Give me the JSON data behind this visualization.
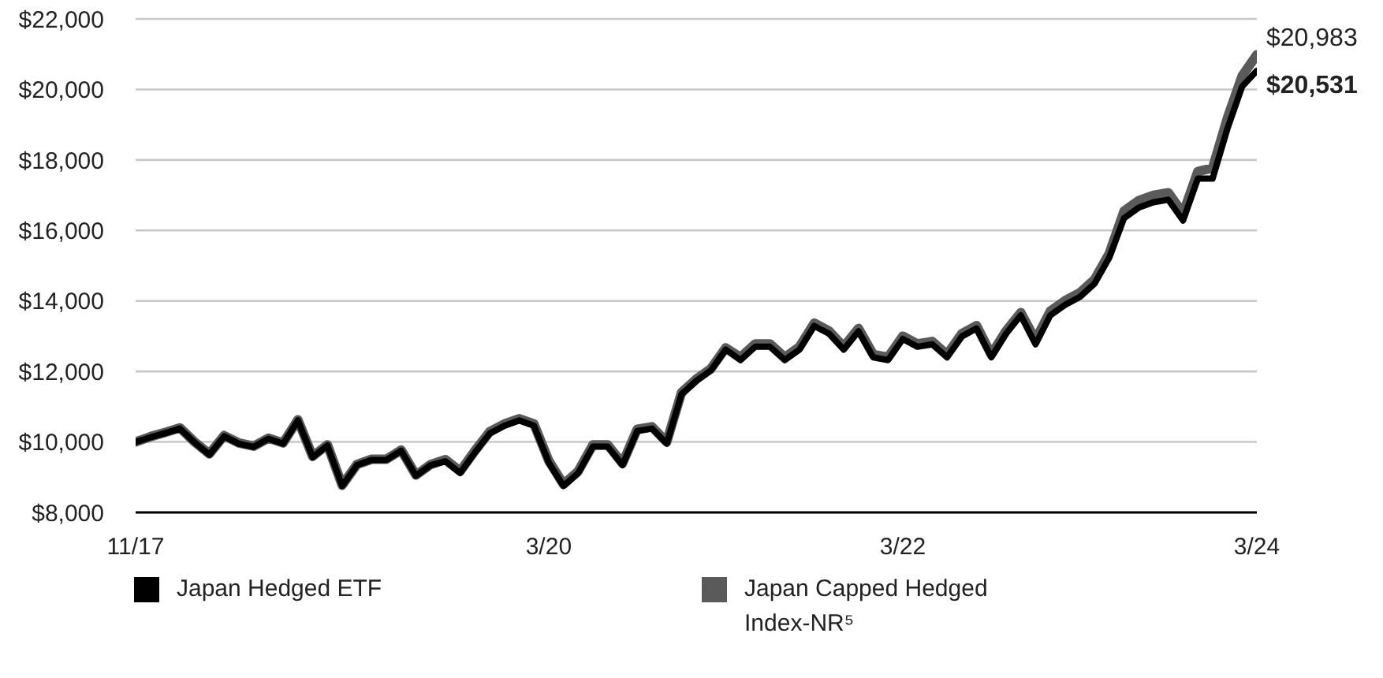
{
  "chart_data": {
    "type": "line",
    "x": [
      "2017-11",
      "2017-12",
      "2018-01",
      "2018-02",
      "2018-03",
      "2018-04",
      "2018-05",
      "2018-06",
      "2018-07",
      "2018-08",
      "2018-09",
      "2018-10",
      "2018-11",
      "2018-12",
      "2019-01",
      "2019-02",
      "2019-03",
      "2019-04",
      "2019-05",
      "2019-06",
      "2019-07",
      "2019-08",
      "2019-09",
      "2019-10",
      "2019-11",
      "2019-12",
      "2020-01",
      "2020-02",
      "2020-03",
      "2020-04",
      "2020-05",
      "2020-06",
      "2020-07",
      "2020-08",
      "2020-09",
      "2020-10",
      "2020-11",
      "2020-12",
      "2021-01",
      "2021-02",
      "2021-03",
      "2021-04",
      "2021-05",
      "2021-06",
      "2021-07",
      "2021-08",
      "2021-09",
      "2021-10",
      "2021-11",
      "2021-12",
      "2022-01",
      "2022-02",
      "2022-03",
      "2022-04",
      "2022-05",
      "2022-06",
      "2022-07",
      "2022-08",
      "2022-09",
      "2022-10",
      "2022-11",
      "2022-12",
      "2023-01",
      "2023-02",
      "2023-03",
      "2023-04",
      "2023-05",
      "2023-06",
      "2023-07",
      "2023-08",
      "2023-09",
      "2023-10",
      "2023-11",
      "2023-12",
      "2024-01",
      "2024-02",
      "2024-03"
    ],
    "series": [
      {
        "name": "Japan Hedged ETF",
        "color": "#000000",
        "values": [
          10000,
          10130,
          10250,
          10380,
          9980,
          9640,
          10160,
          9950,
          9860,
          10090,
          9950,
          10610,
          9570,
          9900,
          8750,
          9340,
          9490,
          9490,
          9750,
          9040,
          9340,
          9450,
          9120,
          9700,
          10240,
          10460,
          10610,
          10460,
          9420,
          8750,
          9120,
          9870,
          9870,
          9340,
          10310,
          10380,
          9950,
          11350,
          11730,
          12030,
          12620,
          12320,
          12700,
          12700,
          12320,
          12620,
          13290,
          13070,
          12620,
          13140,
          12400,
          12320,
          12920,
          12700,
          12770,
          12400,
          12990,
          13220,
          12400,
          13070,
          13590,
          12770,
          13590,
          13890,
          14110,
          14490,
          15230,
          16350,
          16650,
          16800,
          16870,
          16280,
          17470,
          17470,
          18880,
          20080,
          20531
        ],
        "value_labels": [
          null,
          null,
          null,
          null,
          null,
          null,
          null,
          null,
          null,
          null,
          null,
          null,
          null,
          null,
          null,
          null,
          null,
          null,
          null,
          null,
          null,
          null,
          null,
          null,
          null,
          null,
          null,
          null,
          null,
          null,
          null,
          null,
          null,
          null,
          null,
          null,
          null,
          null,
          null,
          null,
          null,
          null,
          null,
          null,
          null,
          null,
          null,
          null,
          null,
          null,
          null,
          null,
          null,
          null,
          null,
          null,
          null,
          null,
          null,
          null,
          null,
          null,
          null,
          null,
          null,
          null,
          null,
          null,
          null,
          null,
          null,
          null,
          null,
          null,
          null,
          null,
          "$20,531"
        ]
      },
      {
        "name": "Japan Capped Hedged Index-NR⁵",
        "color": "#5a5a5a",
        "values": [
          10000,
          10150,
          10270,
          10400,
          10000,
          9660,
          10180,
          9970,
          9880,
          10110,
          9970,
          10630,
          9590,
          9920,
          8770,
          9360,
          9510,
          9510,
          9770,
          9060,
          9360,
          9500,
          9170,
          9750,
          10290,
          10510,
          10660,
          10510,
          9470,
          8800,
          9170,
          9920,
          9920,
          9390,
          10360,
          10430,
          10000,
          11400,
          11780,
          12080,
          12670,
          12400,
          12780,
          12780,
          12400,
          12700,
          13370,
          13150,
          12700,
          13220,
          12480,
          12400,
          13000,
          12780,
          12850,
          12480,
          13070,
          13300,
          12480,
          13150,
          13670,
          12890,
          13710,
          14010,
          14230,
          14610,
          15350,
          16550,
          16850,
          17000,
          17070,
          16480,
          17670,
          17770,
          19180,
          20380,
          20983
        ],
        "value_labels": [
          null,
          null,
          null,
          null,
          null,
          null,
          null,
          null,
          null,
          null,
          null,
          null,
          null,
          null,
          null,
          null,
          null,
          null,
          null,
          null,
          null,
          null,
          null,
          null,
          null,
          null,
          null,
          null,
          null,
          null,
          null,
          null,
          null,
          null,
          null,
          null,
          null,
          null,
          null,
          null,
          null,
          null,
          null,
          null,
          null,
          null,
          null,
          null,
          null,
          null,
          null,
          null,
          null,
          null,
          null,
          null,
          null,
          null,
          null,
          null,
          null,
          null,
          null,
          null,
          null,
          null,
          null,
          null,
          null,
          null,
          null,
          null,
          null,
          null,
          null,
          null,
          "$20,983"
        ]
      }
    ],
    "xlim": [
      "2017-11",
      "2024-03"
    ],
    "xticks": [
      {
        "value": "2017-11",
        "label": "11/17"
      },
      {
        "value": "2020-03",
        "label": "3/20"
      },
      {
        "value": "2022-03",
        "label": "3/22"
      },
      {
        "value": "2024-03",
        "label": "3/24"
      }
    ],
    "ylim": [
      8000,
      22000
    ],
    "yticks": [
      {
        "value": 8000,
        "label": "$8,000"
      },
      {
        "value": 10000,
        "label": "$10,000"
      },
      {
        "value": 12000,
        "label": "$12,000"
      },
      {
        "value": 14000,
        "label": "$14,000"
      },
      {
        "value": 16000,
        "label": "$16,000"
      },
      {
        "value": 18000,
        "label": "$18,000"
      },
      {
        "value": 20000,
        "label": "$20,000"
      },
      {
        "value": 22000,
        "label": "$22,000"
      }
    ],
    "grid": "y",
    "legend": "bottom",
    "marker": "none",
    "line_style": "solid"
  }
}
